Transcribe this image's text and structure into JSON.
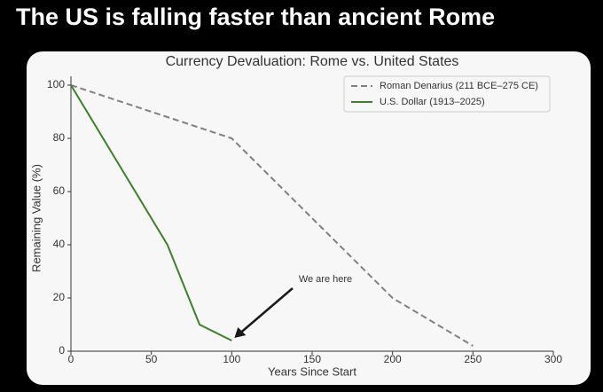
{
  "headline": "The US is falling faster than ancient Rome",
  "chart_data": {
    "type": "line",
    "title": "Currency Devaluation: Rome vs. United States",
    "xlabel": "Years Since Start",
    "ylabel": "Remaining Value (%)",
    "annotation": "We are here",
    "xlim": [
      0,
      300
    ],
    "xticks": [
      0,
      50,
      100,
      150,
      200,
      250,
      300
    ],
    "ylim": [
      0,
      100
    ],
    "yticks": [
      0,
      20,
      40,
      60,
      80,
      100
    ],
    "legend": "upper right",
    "series": [
      {
        "name": "Roman Denarius (211 BCE–275 CE)",
        "color": "#808080",
        "linestyle": "dashed",
        "x": [
          0,
          100,
          150,
          200,
          250
        ],
        "values": [
          100,
          80,
          50,
          20,
          2
        ]
      },
      {
        "name": "U.S. Dollar (1913–2025)",
        "color": "#3f7f2e",
        "linestyle": "solid",
        "x": [
          0,
          60,
          80,
          100
        ],
        "values": [
          100,
          40,
          10,
          4
        ]
      }
    ]
  }
}
